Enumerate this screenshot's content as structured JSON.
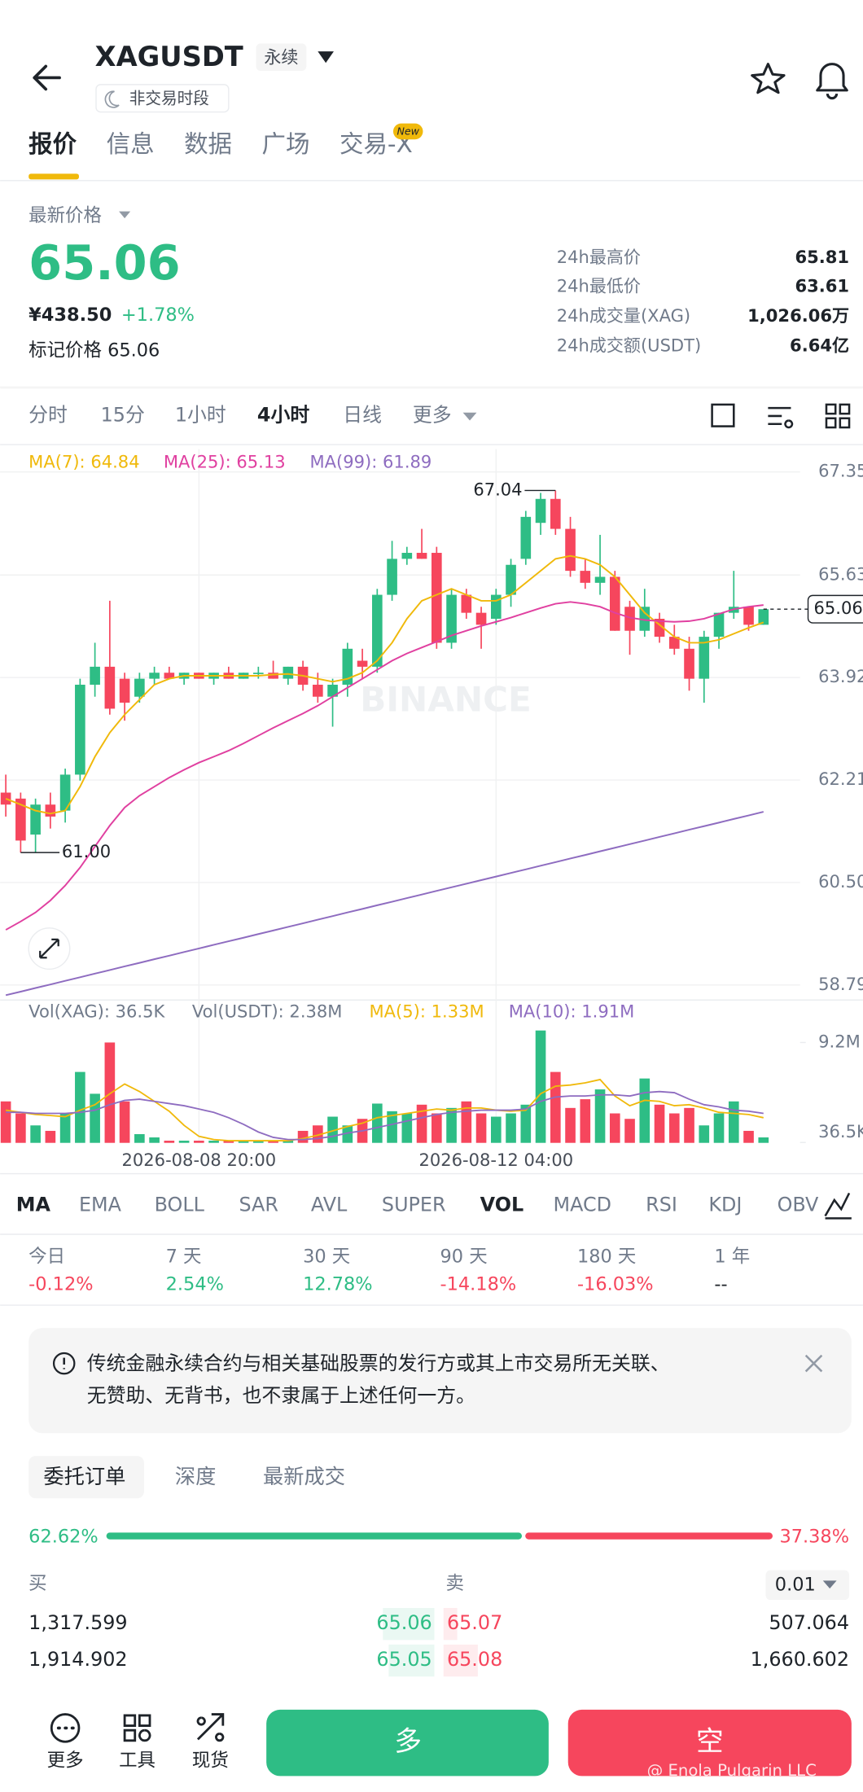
{
  "header": {
    "symbol": "XAGUSDT",
    "contract": "永续",
    "status": "非交易时段"
  },
  "tabs": [
    "报价",
    "信息",
    "数据",
    "广场",
    "交易-X"
  ],
  "tab_badge": "New",
  "price": {
    "label": "最新价格",
    "last": "65.06",
    "cny": "¥438.50",
    "change": "+1.78%",
    "mark": "标记价格 65.06"
  },
  "stats": [
    {
      "label": "24h最高价",
      "value": "65.81"
    },
    {
      "label": "24h最低价",
      "value": "63.61"
    },
    {
      "label": "24h成交量(XAG)",
      "value": "1,026.06万"
    },
    {
      "label": "24h成交额(USDT)",
      "value": "6.64亿"
    }
  ],
  "intervals": [
    "分时",
    "15分",
    "1小时",
    "4小时",
    "日线",
    "更多"
  ],
  "chart_data": {
    "type": "candlestick",
    "up_color": "#2ebd85",
    "down_color": "#f6465d",
    "ma_legend": [
      {
        "label": "MA(7): 64.84",
        "color": "#f0b90b"
      },
      {
        "label": "MA(25): 65.13",
        "color": "#e040a0"
      },
      {
        "label": "MA(99): 61.89",
        "color": "#8e6cc0"
      }
    ],
    "ylim": [
      58.54,
      67.73
    ],
    "yticks": [
      67.35,
      65.63,
      63.92,
      62.21,
      {
        "value": 60.5,
        "label": "60.50"
      },
      58.79
    ],
    "grid": true,
    "last_price": 65.06,
    "high_label": 67.04,
    "low_label": {
      "value": 61,
      "label": "61.00"
    },
    "watermark": "BINANCE",
    "categories": [
      null,
      null,
      null,
      null,
      null,
      null,
      null,
      null,
      null,
      null,
      null,
      null,
      null,
      "2026-08-08 20:00",
      null,
      null,
      null,
      null,
      null,
      null,
      null,
      null,
      null,
      null,
      null,
      null,
      null,
      null,
      null,
      null,
      null,
      null,
      null,
      "2026-08-12 04:00",
      null,
      null,
      null,
      null,
      null,
      null,
      null,
      null,
      null,
      null,
      null,
      null,
      null,
      null,
      null,
      null,
      null,
      null
    ],
    "candles": [
      [
        62.0,
        62.3,
        61.6,
        61.8
      ],
      [
        61.9,
        62.0,
        61.0,
        61.2
      ],
      [
        61.3,
        61.9,
        61.0,
        61.8
      ],
      [
        61.8,
        62.0,
        61.4,
        61.6
      ],
      [
        61.7,
        62.4,
        61.5,
        62.3
      ],
      [
        62.3,
        63.9,
        62.2,
        63.8
      ],
      [
        63.8,
        64.5,
        63.6,
        64.1
      ],
      [
        64.1,
        65.2,
        63.3,
        63.4
      ],
      [
        63.9,
        64.0,
        63.2,
        63.5
      ],
      [
        63.6,
        64.0,
        63.5,
        63.9
      ],
      [
        63.9,
        64.1,
        63.8,
        64.0
      ],
      [
        64.0,
        64.1,
        63.9,
        63.9
      ],
      [
        63.9,
        64.0,
        63.8,
        64.0
      ],
      [
        64.0,
        64.0,
        63.9,
        63.9
      ],
      [
        63.9,
        64.0,
        63.8,
        64.0
      ],
      [
        64.0,
        64.1,
        63.9,
        63.9
      ],
      [
        63.9,
        64.0,
        63.9,
        64.0
      ],
      [
        64.0,
        64.1,
        63.9,
        64.0
      ],
      [
        64.0,
        64.2,
        63.9,
        63.9
      ],
      [
        63.9,
        64.1,
        63.8,
        64.1
      ],
      [
        64.1,
        64.2,
        63.7,
        63.8
      ],
      [
        63.8,
        64.0,
        63.5,
        63.6
      ],
      [
        63.6,
        63.9,
        63.1,
        63.8
      ],
      [
        63.8,
        64.5,
        63.6,
        64.4
      ],
      [
        64.2,
        64.4,
        63.9,
        64.1
      ],
      [
        64.1,
        65.4,
        64.0,
        65.3
      ],
      [
        65.3,
        66.2,
        65.2,
        65.9
      ],
      [
        65.9,
        66.1,
        65.8,
        66.0
      ],
      [
        66.0,
        66.4,
        65.9,
        65.9
      ],
      [
        66.0,
        66.1,
        64.4,
        64.5
      ],
      [
        64.5,
        65.4,
        64.4,
        65.3
      ],
      [
        65.3,
        65.4,
        64.9,
        65.0
      ],
      [
        65.0,
        65.1,
        64.4,
        64.8
      ],
      [
        64.9,
        65.4,
        64.8,
        65.3
      ],
      [
        65.3,
        65.9,
        65.1,
        65.8
      ],
      [
        65.9,
        66.7,
        65.8,
        66.6
      ],
      [
        66.5,
        67.0,
        66.3,
        66.9
      ],
      [
        66.9,
        67.04,
        66.3,
        66.4
      ],
      [
        66.4,
        66.6,
        65.6,
        65.7
      ],
      [
        65.7,
        65.9,
        65.4,
        65.5
      ],
      [
        65.5,
        66.3,
        65.3,
        65.6
      ],
      [
        65.6,
        65.7,
        64.7,
        64.7
      ],
      [
        65.1,
        65.2,
        64.3,
        64.7
      ],
      [
        64.7,
        65.4,
        64.6,
        65.1
      ],
      [
        64.9,
        65.0,
        64.5,
        64.6
      ],
      [
        64.6,
        64.8,
        64.3,
        64.4
      ],
      [
        64.4,
        64.6,
        63.7,
        63.9
      ],
      [
        63.9,
        64.7,
        63.5,
        64.6
      ],
      [
        64.6,
        65.0,
        64.4,
        65.0
      ],
      [
        65.0,
        65.7,
        64.9,
        65.1
      ],
      [
        65.1,
        65.1,
        64.7,
        64.8
      ],
      [
        64.8,
        65.06,
        64.8,
        65.06
      ]
    ],
    "ma_lines": [
      {
        "color": "#f0b90b",
        "values": [
          61.9,
          61.8,
          61.7,
          61.65,
          61.7,
          62.1,
          62.6,
          63.0,
          63.3,
          63.55,
          63.8,
          63.9,
          63.95,
          63.95,
          63.95,
          63.95,
          63.95,
          63.95,
          63.97,
          63.98,
          63.95,
          63.9,
          63.85,
          63.9,
          64.0,
          64.2,
          64.5,
          64.9,
          65.2,
          65.3,
          65.4,
          65.3,
          65.2,
          65.2,
          65.3,
          65.5,
          65.7,
          65.9,
          65.95,
          65.9,
          65.8,
          65.6,
          65.3,
          65.0,
          64.8,
          64.6,
          64.5,
          64.5,
          64.55,
          64.65,
          64.75,
          64.84
        ]
      },
      {
        "color": "#e040a0",
        "values": [
          59.71,
          59.85,
          60.0,
          60.2,
          60.45,
          60.75,
          61.1,
          61.45,
          61.75,
          61.95,
          62.1,
          62.25,
          62.38,
          62.5,
          62.6,
          62.7,
          62.82,
          62.95,
          63.08,
          63.2,
          63.32,
          63.45,
          63.6,
          63.75,
          63.9,
          64.05,
          64.2,
          64.32,
          64.42,
          64.52,
          64.62,
          64.7,
          64.78,
          64.85,
          64.92,
          65.0,
          65.08,
          65.15,
          65.18,
          65.15,
          65.1,
          65.0,
          64.92,
          64.88,
          64.86,
          64.85,
          64.86,
          64.9,
          64.98,
          65.06,
          65.1,
          65.13
        ]
      },
      {
        "color": "#8e6cc0",
        "values": [
          58.62,
          58.68,
          58.74,
          58.8,
          58.86,
          58.92,
          58.98,
          59.04,
          59.1,
          59.16,
          59.22,
          59.28,
          59.34,
          59.4,
          59.46,
          59.52,
          59.58,
          59.64,
          59.7,
          59.76,
          59.82,
          59.88,
          59.94,
          60.0,
          60.06,
          60.12,
          60.18,
          60.24,
          60.3,
          60.36,
          60.42,
          60.48,
          60.54,
          60.6,
          60.66,
          60.72,
          60.78,
          60.84,
          60.9,
          60.96,
          61.02,
          61.08,
          61.14,
          61.2,
          61.26,
          61.32,
          61.38,
          61.44,
          61.5,
          61.56,
          61.62,
          61.68
        ]
      }
    ],
    "volume": {
      "legend": [
        {
          "label": "Vol(XAG): 36.5K",
          "color": "#707a8a"
        },
        {
          "label": "Vol(USDT): 2.38M",
          "color": "#707a8a"
        },
        {
          "label": "MA(5): 1.33M",
          "color": "#f0b90b"
        },
        {
          "label": "MA(10): 1.91M",
          "color": "#8e6cc0"
        }
      ],
      "ylim": [
        0,
        11
      ],
      "yticks": [
        {
          "value": 9.2,
          "label": "9.2M"
        },
        {
          "value": 0.0365,
          "label": "36.5K"
        }
      ],
      "values": [
        3.8,
        2.7,
        1.6,
        1.1,
        2.7,
        6.5,
        4.5,
        9.2,
        3.8,
        0.8,
        0.5,
        0.2,
        0.2,
        0.2,
        0.2,
        0.2,
        0.2,
        0.2,
        0.2,
        0.2,
        1.1,
        1.6,
        2.4,
        1.6,
        2.2,
        3.6,
        2.9,
        2.7,
        3.5,
        2.7,
        3.2,
        3.8,
        2.7,
        2.4,
        2.7,
        3.5,
        10.3,
        6.5,
        3.2,
        4.0,
        4.9,
        2.7,
        2.2,
        5.9,
        3.5,
        2.7,
        3.2,
        1.6,
        2.7,
        3.8,
        1.1,
        0.5
      ],
      "ma_lines": [
        {
          "color": "#f0b90b",
          "values": [
            3.0,
            2.8,
            2.6,
            2.5,
            2.4,
            3.0,
            3.5,
            4.5,
            5.4,
            4.7,
            3.8,
            2.9,
            1.6,
            0.6,
            0.3,
            0.2,
            0.2,
            0.2,
            0.2,
            0.2,
            0.4,
            0.7,
            1.1,
            1.5,
            1.8,
            2.3,
            2.5,
            2.7,
            2.9,
            3.1,
            3.0,
            3.2,
            3.2,
            3.0,
            2.9,
            3.0,
            4.5,
            5.2,
            5.3,
            5.5,
            5.8,
            4.3,
            3.4,
            3.9,
            3.8,
            3.4,
            3.5,
            3.2,
            2.8,
            2.7,
            2.6,
            2.3
          ]
        },
        {
          "color": "#8e6cc0",
          "values": [
            2.8,
            2.8,
            2.7,
            2.7,
            2.7,
            2.8,
            3.0,
            3.5,
            3.9,
            4.0,
            3.8,
            3.6,
            3.4,
            3.1,
            2.8,
            2.3,
            1.7,
            1.0,
            0.5,
            0.3,
            0.3,
            0.4,
            0.6,
            0.9,
            1.1,
            1.4,
            1.7,
            2.0,
            2.3,
            2.6,
            2.8,
            2.9,
            3.0,
            3.0,
            3.0,
            3.1,
            3.8,
            4.2,
            4.3,
            4.3,
            4.4,
            4.4,
            4.3,
            4.6,
            4.7,
            4.6,
            4.0,
            3.5,
            3.3,
            3.0,
            2.9,
            2.7
          ]
        }
      ]
    }
  },
  "indicators": [
    "MA",
    "EMA",
    "BOLL",
    "SAR",
    "AVL",
    "SUPER",
    "VOL",
    "MACD",
    "RSI",
    "KDJ",
    "OBV"
  ],
  "performance": [
    {
      "period": "今日",
      "value": "-0.12%"
    },
    {
      "period": "7 天",
      "value": "2.54%"
    },
    {
      "period": "30 天",
      "value": "12.78%"
    },
    {
      "period": "90 天",
      "value": "-14.18%"
    },
    {
      "period": "180 天",
      "value": "-16.03%"
    },
    {
      "period": "1 年",
      "value": "--"
    }
  ],
  "notice": [
    "传统金融永续合约与相关基础股票的发行方或其上市交易所无关联、",
    "无赞助、无背书，也不隶属于上述任何一方。"
  ],
  "order_tabs": [
    "委托订单",
    "深度",
    "最新成交"
  ],
  "ratio": {
    "values": [
      62.62,
      37.38
    ],
    "value_labels": [
      "62.62%",
      "37.38%"
    ]
  },
  "book": {
    "buy_header": "买",
    "sell_header": "卖",
    "precision": "0.01",
    "rows": [
      [
        "1,317.599",
        "65.06",
        "65.07",
        "507.064"
      ],
      [
        "1,914.902",
        "65.05",
        "65.08",
        "1,660.602"
      ]
    ]
  },
  "bottom_nav": [
    "更多",
    "工具",
    "现货"
  ],
  "actions": [
    "多",
    "空"
  ],
  "watermark": "@ Enola Pulgarin LLC"
}
